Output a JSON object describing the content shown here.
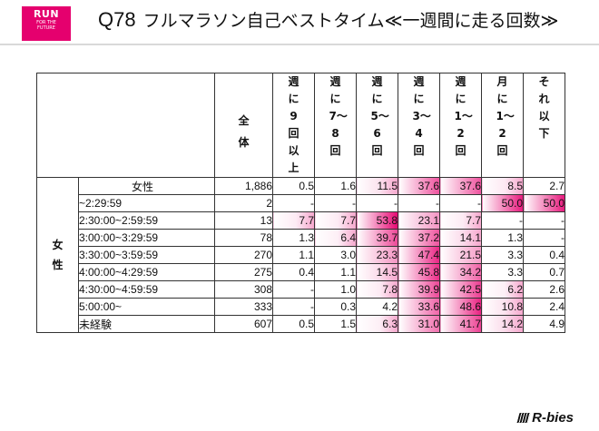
{
  "logo": {
    "line1": "RUN",
    "line2": "FOR THE",
    "line3": "FUTURE",
    "color": "#e5006e"
  },
  "header": {
    "q": "Q78",
    "title": "フルマラソン自己ベストタイム≪一週間に走る回数≫"
  },
  "table": {
    "category": "女性",
    "columns": [
      "全体",
      "週に9回以上",
      "週に7〜8回",
      "週に5〜6回",
      "週に3〜4回",
      "週に1〜2回",
      "月に1〜2回",
      "それ以下"
    ],
    "rows": [
      {
        "label": "女性",
        "n": "1,886",
        "values": [
          "0.5",
          "1.6",
          "11.5",
          "37.6",
          "37.6",
          "8.5",
          "2.7"
        ]
      },
      {
        "label": "~2:29:59",
        "n": "2",
        "values": [
          "-",
          "-",
          "-",
          "-",
          "-",
          "50.0",
          "50.0"
        ]
      },
      {
        "label": "2:30:00~2:59:59",
        "n": "13",
        "values": [
          "7.7",
          "7.7",
          "53.8",
          "23.1",
          "7.7",
          "-",
          "-"
        ]
      },
      {
        "label": "3:00:00~3:29:59",
        "n": "78",
        "values": [
          "1.3",
          "6.4",
          "39.7",
          "37.2",
          "14.1",
          "1.3",
          "-"
        ]
      },
      {
        "label": "3:30:00~3:59:59",
        "n": "270",
        "values": [
          "1.1",
          "3.0",
          "23.3",
          "47.4",
          "21.5",
          "3.3",
          "0.4"
        ]
      },
      {
        "label": "4:00:00~4:29:59",
        "n": "275",
        "values": [
          "0.4",
          "1.1",
          "14.5",
          "45.8",
          "34.2",
          "3.3",
          "0.7"
        ]
      },
      {
        "label": "4:30:00~4:59:59",
        "n": "308",
        "values": [
          "-",
          "1.0",
          "7.8",
          "39.9",
          "42.5",
          "6.2",
          "2.6"
        ]
      },
      {
        "label": "5:00:00~",
        "n": "333",
        "values": [
          "-",
          "0.3",
          "4.2",
          "33.6",
          "48.6",
          "10.8",
          "2.4"
        ]
      },
      {
        "label": "未経験",
        "n": "607",
        "values": [
          "0.5",
          "1.5",
          "6.3",
          "31.0",
          "41.7",
          "14.2",
          "4.9"
        ]
      }
    ]
  },
  "footer": {
    "brand": "R-bies"
  },
  "colors": {
    "highlight": "#e6006f",
    "highlight_light": "#ffffff"
  }
}
